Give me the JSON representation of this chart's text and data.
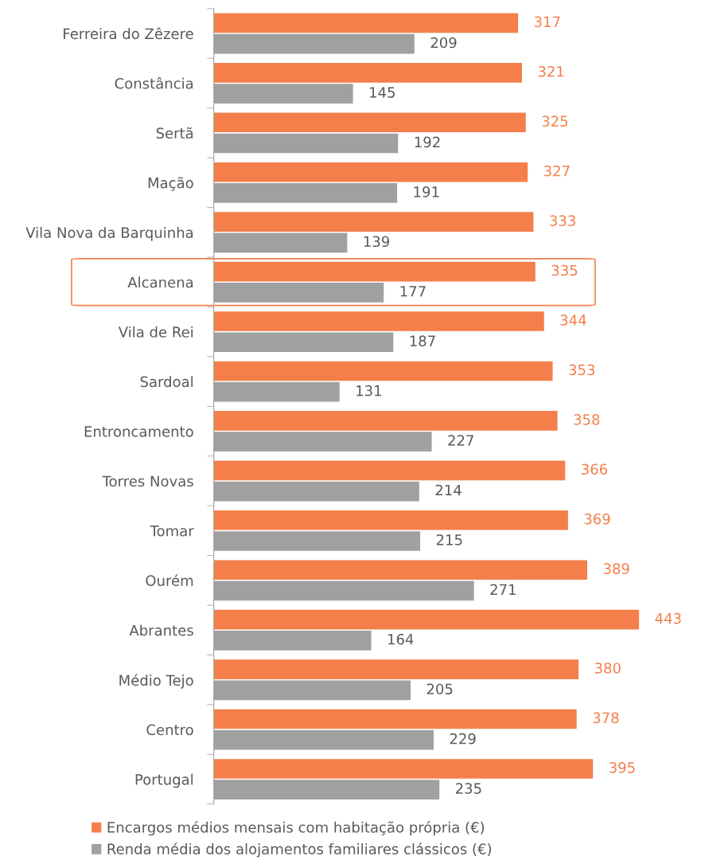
{
  "chart_data": {
    "type": "bar",
    "orientation": "horizontal",
    "data_labels": true,
    "legend": "bottom",
    "grid": false,
    "tick_labels": "y",
    "categories": [
      "Ferreira do Zêzere",
      "Constância",
      "Sertã",
      "Mação",
      "Vila Nova da Barquinha",
      "Alcanena",
      "Vila de Rei",
      "Sardoal",
      "Entroncamento",
      "Torres Novas",
      "Tomar",
      "Ourém",
      "Abrantes",
      "Médio Tejo",
      "Centro",
      "Portugal"
    ],
    "series": [
      {
        "name": "Encargos médios mensais com habitação própria (€)",
        "color": "#f47f4a",
        "values": [
          317,
          321,
          325,
          327,
          333,
          335,
          344,
          353,
          358,
          366,
          369,
          389,
          443,
          380,
          378,
          395
        ]
      },
      {
        "name": "Renda média dos alojamentos familiares clássicos (€)",
        "color": "#a0a0a0",
        "values": [
          209,
          145,
          192,
          191,
          139,
          177,
          187,
          131,
          227,
          214,
          215,
          271,
          164,
          205,
          229,
          235
        ]
      }
    ]
  }
}
